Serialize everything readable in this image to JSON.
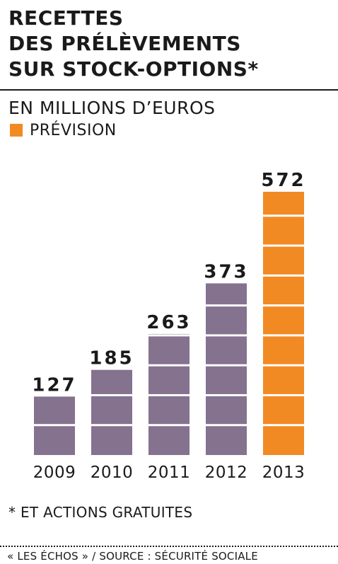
{
  "title_lines": [
    "RECETTES",
    "DES PRÉLÈVEMENTS",
    "SUR STOCK-OPTIONS*"
  ],
  "subtitle": "EN MILLIONS D’EUROS",
  "legend": {
    "label": "PRÉVISION",
    "color": "#f28a24"
  },
  "footnote": "* ET ACTIONS GRATUITES",
  "source": "« LES ÉCHOS » / SOURCE : SÉCURITÉ SOCIALE",
  "colors": {
    "actual": "#85728f",
    "forecast": "#f28a24",
    "text": "#1a1a1a"
  },
  "chart_data": {
    "type": "bar",
    "categories": [
      "2009",
      "2010",
      "2011",
      "2012",
      "2013"
    ],
    "values": [
      127,
      185,
      263,
      373,
      572
    ],
    "value_labels": [
      "127",
      "185",
      "263",
      "373",
      "572"
    ],
    "forecast": [
      false,
      false,
      false,
      false,
      true
    ],
    "gridline_values": [
      65,
      130,
      195,
      260,
      325,
      390,
      455,
      520
    ],
    "ylim": [
      0,
      572
    ],
    "title": "",
    "xlabel": "",
    "ylabel": ""
  }
}
